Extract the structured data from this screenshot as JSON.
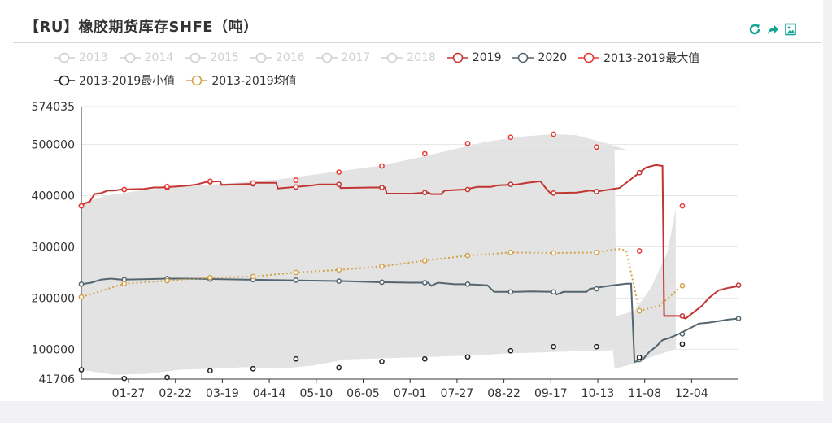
{
  "title": "【RU】橡胶期货库存SHFE（吨）",
  "toolbar": {
    "refresh_icon": "refresh-icon",
    "share_icon": "share-icon",
    "save_icon": "save-image-icon"
  },
  "chart_data": {
    "type": "line",
    "title": "【RU】橡胶期货库存SHFE（吨）",
    "xlabel": "",
    "ylabel": "",
    "ylim": [
      41706,
      574035
    ],
    "y_ticks": [
      41706,
      100000,
      200000,
      300000,
      400000,
      500000,
      574035
    ],
    "y_tick_labels": [
      "41706",
      "100000",
      "200000",
      "300000",
      "400000",
      "500000",
      "574035"
    ],
    "x_ticks": [
      "01-27",
      "02-22",
      "03-19",
      "04-14",
      "05-10",
      "06-05",
      "07-01",
      "07-27",
      "08-22",
      "09-17",
      "10-13",
      "11-08",
      "12-04"
    ],
    "x_domain_days": [
      0,
      360
    ],
    "legend_placement": "top",
    "grid": true,
    "legend": [
      {
        "name": "2013",
        "active": false,
        "color": "#cfcfcf"
      },
      {
        "name": "2014",
        "active": false,
        "color": "#cfcfcf"
      },
      {
        "name": "2015",
        "active": false,
        "color": "#cfcfcf"
      },
      {
        "name": "2016",
        "active": false,
        "color": "#cfcfcf"
      },
      {
        "name": "2017",
        "active": false,
        "color": "#cfcfcf"
      },
      {
        "name": "2018",
        "active": false,
        "color": "#cfcfcf"
      },
      {
        "name": "2019",
        "active": true,
        "color": "#c23531"
      },
      {
        "name": "2020",
        "active": true,
        "color": "#546570"
      },
      {
        "name": "2013-2019最大值",
        "active": true,
        "color": "#e53935"
      },
      {
        "name": "2013-2019最小值",
        "active": true,
        "color": "#222222"
      },
      {
        "name": "2013-2019均值",
        "active": true,
        "color": "#d4a24c"
      }
    ],
    "band": {
      "name": "range",
      "color": "#e3e3e3",
      "upper": [
        [
          0,
          385000
        ],
        [
          15,
          400000
        ],
        [
          40,
          412000
        ],
        [
          80,
          422000
        ],
        [
          120,
          432000
        ],
        [
          150,
          445000
        ],
        [
          180,
          458000
        ],
        [
          205,
          475000
        ],
        [
          225,
          490000
        ],
        [
          245,
          505000
        ],
        [
          265,
          515000
        ],
        [
          285,
          520000
        ],
        [
          300,
          518000
        ],
        [
          315,
          505000
        ],
        [
          330,
          490000
        ],
        [
          322,
          488000
        ],
        [
          323,
          488000
        ],
        [
          324,
          165000
        ],
        [
          335,
          175000
        ],
        [
          345,
          220000
        ],
        [
          355,
          290000
        ],
        [
          360,
          375000
        ]
      ],
      "lower": [
        [
          0,
          60000
        ],
        [
          20,
          50000
        ],
        [
          40,
          52000
        ],
        [
          60,
          60000
        ],
        [
          80,
          62000
        ],
        [
          100,
          65000
        ],
        [
          120,
          62000
        ],
        [
          140,
          68000
        ],
        [
          160,
          80000
        ],
        [
          180,
          82000
        ],
        [
          200,
          84000
        ],
        [
          220,
          86000
        ],
        [
          240,
          88000
        ],
        [
          260,
          92000
        ],
        [
          280,
          94000
        ],
        [
          300,
          96000
        ],
        [
          322,
          98000
        ],
        [
          323,
          62000
        ],
        [
          335,
          72000
        ],
        [
          345,
          85000
        ],
        [
          355,
          95000
        ],
        [
          360,
          100000
        ]
      ]
    },
    "series": [
      {
        "name": "2019",
        "color": "#c23531",
        "style": "solid",
        "values": [
          [
            0,
            380000
          ],
          [
            2,
            385000
          ],
          [
            5,
            388000
          ],
          [
            8,
            403000
          ],
          [
            12,
            405000
          ],
          [
            16,
            410000
          ],
          [
            20,
            410000
          ],
          [
            24,
            412000
          ],
          [
            38,
            413000
          ],
          [
            44,
            416000
          ],
          [
            48,
            416000
          ],
          [
            58,
            418000
          ],
          [
            66,
            420000
          ],
          [
            70,
            422000
          ],
          [
            76,
            427000
          ],
          [
            84,
            428000
          ],
          [
            85,
            421000
          ],
          [
            104,
            423000
          ],
          [
            106,
            425000
          ],
          [
            118,
            425000
          ],
          [
            119,
            414000
          ],
          [
            130,
            417000
          ],
          [
            140,
            420000
          ],
          [
            144,
            422000
          ],
          [
            156,
            422000
          ],
          [
            157,
            415000
          ],
          [
            176,
            416000
          ],
          [
            184,
            416000
          ],
          [
            185,
            404000
          ],
          [
            200,
            404000
          ],
          [
            210,
            406000
          ],
          [
            212,
            403000
          ],
          [
            218,
            403000
          ],
          [
            220,
            410000
          ],
          [
            232,
            412000
          ],
          [
            240,
            417000
          ],
          [
            248,
            417000
          ],
          [
            252,
            420000
          ],
          [
            264,
            422000
          ],
          [
            270,
            425000
          ],
          [
            278,
            428000
          ],
          [
            282,
            412000
          ],
          [
            284,
            405000
          ],
          [
            300,
            406000
          ],
          [
            308,
            410000
          ],
          [
            312,
            408000
          ],
          [
            320,
            412000
          ],
          [
            326,
            415000
          ],
          [
            330,
            425000
          ],
          [
            334,
            435000
          ],
          [
            338,
            445000
          ],
          [
            342,
            455000
          ],
          [
            348,
            460000
          ],
          [
            352,
            458000
          ],
          [
            353,
            165000
          ],
          [
            362,
            165000
          ],
          [
            366,
            160000
          ],
          [
            372,
            175000
          ],
          [
            376,
            185000
          ],
          [
            380,
            200000
          ],
          [
            386,
            215000
          ],
          [
            392,
            220000
          ],
          [
            396,
            222000
          ],
          [
            398,
            225000
          ]
        ]
      },
      {
        "name": "2020",
        "color": "#546570",
        "style": "solid",
        "values": [
          [
            0,
            227000
          ],
          [
            6,
            230000
          ],
          [
            12,
            236000
          ],
          [
            18,
            238000
          ],
          [
            24,
            236000
          ],
          [
            40,
            237000
          ],
          [
            52,
            238000
          ],
          [
            64,
            238000
          ],
          [
            82,
            237000
          ],
          [
            100,
            236000
          ],
          [
            120,
            235000
          ],
          [
            140,
            234000
          ],
          [
            160,
            233000
          ],
          [
            180,
            231000
          ],
          [
            200,
            230000
          ],
          [
            210,
            230000
          ],
          [
            212,
            224000
          ],
          [
            216,
            230000
          ],
          [
            226,
            227000
          ],
          [
            232,
            227000
          ],
          [
            240,
            226000
          ],
          [
            246,
            225000
          ],
          [
            250,
            212000
          ],
          [
            262,
            212000
          ],
          [
            272,
            213000
          ],
          [
            286,
            212000
          ],
          [
            288,
            207000
          ],
          [
            292,
            212000
          ],
          [
            300,
            212000
          ],
          [
            306,
            212000
          ],
          [
            308,
            218000
          ],
          [
            316,
            222000
          ],
          [
            322,
            225000
          ],
          [
            330,
            228000
          ],
          [
            333,
            228000
          ],
          [
            335,
            75000
          ],
          [
            340,
            80000
          ],
          [
            344,
            95000
          ],
          [
            348,
            105000
          ],
          [
            352,
            118000
          ],
          [
            356,
            122000
          ],
          [
            362,
            130000
          ],
          [
            368,
            140000
          ],
          [
            374,
            150000
          ],
          [
            380,
            152000
          ],
          [
            386,
            155000
          ],
          [
            392,
            158000
          ],
          [
            398,
            160000
          ]
        ]
      },
      {
        "name": "2013-2019最大值",
        "color": "#e53935",
        "style": "points",
        "values": [
          [
            0,
            380000
          ],
          [
            26,
            412000
          ],
          [
            52,
            418000
          ],
          [
            78,
            428000
          ],
          [
            104,
            425000
          ],
          [
            130,
            430000
          ],
          [
            156,
            446000
          ],
          [
            182,
            458000
          ],
          [
            208,
            482000
          ],
          [
            234,
            502000
          ],
          [
            260,
            514000
          ],
          [
            286,
            520000
          ],
          [
            312,
            495000
          ],
          [
            338,
            292000
          ],
          [
            364,
            380000
          ]
        ]
      },
      {
        "name": "2013-2019最小值",
        "color": "#222222",
        "style": "points",
        "values": [
          [
            0,
            60000
          ],
          [
            26,
            43000
          ],
          [
            52,
            45000
          ],
          [
            78,
            58000
          ],
          [
            104,
            62000
          ],
          [
            130,
            81000
          ],
          [
            156,
            64000
          ],
          [
            182,
            76000
          ],
          [
            208,
            81000
          ],
          [
            234,
            85000
          ],
          [
            260,
            97000
          ],
          [
            286,
            105000
          ],
          [
            312,
            105000
          ],
          [
            338,
            84000
          ],
          [
            364,
            110000
          ]
        ]
      },
      {
        "name": "2013-2019均值",
        "color": "#d4a24c",
        "style": "dotted",
        "values": [
          [
            0,
            202000
          ],
          [
            10,
            212000
          ],
          [
            26,
            228000
          ],
          [
            52,
            234000
          ],
          [
            78,
            240000
          ],
          [
            104,
            242000
          ],
          [
            130,
            250000
          ],
          [
            156,
            255000
          ],
          [
            182,
            262000
          ],
          [
            208,
            273000
          ],
          [
            234,
            283000
          ],
          [
            260,
            289000
          ],
          [
            286,
            288000
          ],
          [
            312,
            289000
          ],
          [
            325,
            296000
          ],
          [
            330,
            293000
          ],
          [
            338,
            175000
          ],
          [
            350,
            185000
          ],
          [
            364,
            224000
          ]
        ]
      }
    ],
    "x_range": [
      0,
      364
    ]
  }
}
